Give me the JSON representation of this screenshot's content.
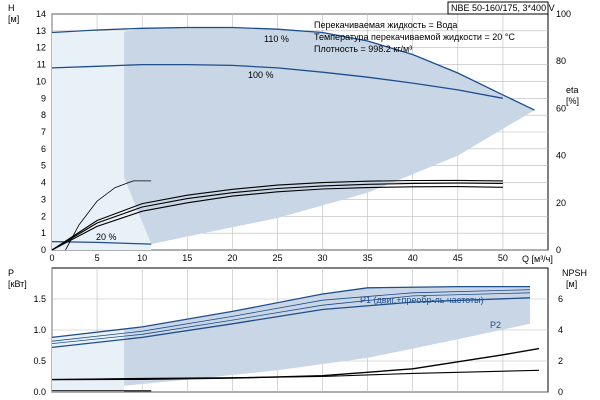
{
  "chart_data": {
    "type": "line",
    "colors": {
      "curve": "#1f4e8c",
      "region": "#c9d6e6",
      "region_light": "#e8f0f8",
      "grid": "#bbbbbb",
      "curve_black": "#000000"
    },
    "title_box": "NBE 50-160/175, 3*400 V",
    "info_lines": [
      "Перекачиваемая жидкость = Вода",
      "Температура перекачиваемой жидкости = 20 °C",
      "Плотность = 998.2 кг/м³"
    ],
    "x_axis": {
      "label": "Q [м³/ч]",
      "ticks": [
        0,
        5,
        10,
        15,
        20,
        25,
        30,
        35,
        40,
        45,
        50
      ],
      "range": [
        0,
        55
      ]
    },
    "top": {
      "y_left_label": [
        "H",
        "[м]"
      ],
      "y_left_range": [
        0,
        14
      ],
      "y_left_ticks": [
        0,
        1,
        2,
        3,
        4,
        5,
        6,
        7,
        8,
        9,
        10,
        11,
        12,
        13,
        14
      ],
      "y_right_label": [
        "eta",
        "[%]"
      ],
      "y_right_range": [
        0,
        100
      ],
      "y_right_ticks": [
        0,
        20,
        40,
        60,
        80,
        100
      ],
      "curve_labels": [
        "110 %",
        "100 %",
        "20 %"
      ],
      "series": [
        {
          "name": "110 %",
          "points": [
            [
              0,
              12.9
            ],
            [
              5,
              13.05
            ],
            [
              10,
              13.15
            ],
            [
              15,
              13.2
            ],
            [
              20,
              13.2
            ],
            [
              25,
              13.1
            ],
            [
              30,
              12.9
            ],
            [
              35,
              12.4
            ],
            [
              40,
              11.6
            ],
            [
              45,
              10.5
            ],
            [
              50,
              9.2
            ],
            [
              53.5,
              8.3
            ]
          ]
        },
        {
          "name": "100 %",
          "points": [
            [
              0,
              10.8
            ],
            [
              5,
              10.9
            ],
            [
              10,
              11.0
            ],
            [
              15,
              11.0
            ],
            [
              20,
              10.95
            ],
            [
              25,
              10.8
            ],
            [
              30,
              10.55
            ],
            [
              35,
              10.25
            ],
            [
              40,
              9.9
            ],
            [
              45,
              9.5
            ],
            [
              50,
              9.0
            ]
          ]
        },
        {
          "name": "20 %",
          "points": [
            [
              0,
              0.5
            ],
            [
              5,
              0.45
            ],
            [
              11,
              0.35
            ]
          ]
        }
      ],
      "eff_curves": [
        {
          "points": [
            [
              0,
              0.0
            ],
            [
              5,
              1.4
            ],
            [
              10,
              2.3
            ],
            [
              15,
              2.8
            ],
            [
              20,
              3.2
            ],
            [
              25,
              3.45
            ],
            [
              30,
              3.62
            ],
            [
              35,
              3.7
            ],
            [
              40,
              3.75
            ],
            [
              45,
              3.76
            ],
            [
              50,
              3.72
            ]
          ]
        },
        {
          "points": [
            [
              0,
              0.0
            ],
            [
              5,
              1.6
            ],
            [
              10,
              2.55
            ],
            [
              15,
              3.05
            ],
            [
              20,
              3.4
            ],
            [
              25,
              3.65
            ],
            [
              30,
              3.8
            ],
            [
              35,
              3.9
            ],
            [
              40,
              3.95
            ],
            [
              45,
              3.97
            ],
            [
              50,
              3.95
            ]
          ]
        },
        {
          "points": [
            [
              0,
              0.0
            ],
            [
              5,
              1.75
            ],
            [
              10,
              2.75
            ],
            [
              15,
              3.25
            ],
            [
              20,
              3.6
            ],
            [
              25,
              3.85
            ],
            [
              30,
              4.0
            ],
            [
              35,
              4.08
            ],
            [
              40,
              4.12
            ],
            [
              45,
              4.13
            ],
            [
              50,
              4.1
            ]
          ]
        }
      ],
      "eff_curve_small": {
        "points": [
          [
            1.5,
            0.0
          ],
          [
            3,
            1.5
          ],
          [
            5,
            2.9
          ],
          [
            7,
            3.7
          ],
          [
            9,
            4.1
          ],
          [
            11,
            4.1
          ]
        ]
      }
    },
    "bottom": {
      "y_left_label": [
        "P",
        "[кВт]"
      ],
      "y_left_range": [
        0,
        2.0
      ],
      "y_left_ticks": [
        0.0,
        0.5,
        1.0,
        1.5
      ],
      "y_right_label": [
        "NPSH",
        "[м]"
      ],
      "y_right_range": [
        0,
        8
      ],
      "y_right_ticks": [
        0,
        2,
        4,
        6
      ],
      "curve_labels": [
        "P1 (двиг.+преобр-ль частоты)",
        "P2"
      ],
      "series": [
        {
          "name": "P1 (двиг.+преобр-ль частоты)",
          "points": [
            [
              0,
              0.88
            ],
            [
              10,
              1.05
            ],
            [
              20,
              1.3
            ],
            [
              30,
              1.58
            ],
            [
              35,
              1.68
            ],
            [
              45,
              1.7
            ],
            [
              53,
              1.7
            ]
          ]
        },
        {
          "name": "P2",
          "points": [
            [
              0,
              0.72
            ],
            [
              10,
              0.88
            ],
            [
              20,
              1.1
            ],
            [
              30,
              1.33
            ],
            [
              40,
              1.45
            ],
            [
              53,
              1.52
            ]
          ]
        }
      ],
      "minor_curves": [
        {
          "points": [
            [
              0,
              0.82
            ],
            [
              10,
              0.98
            ],
            [
              20,
              1.22
            ],
            [
              30,
              1.48
            ],
            [
              40,
              1.6
            ],
            [
              53,
              1.65
            ]
          ]
        },
        {
          "points": [
            [
              0,
              0.78
            ],
            [
              10,
              0.93
            ],
            [
              20,
              1.16
            ],
            [
              30,
              1.4
            ],
            [
              40,
              1.55
            ],
            [
              53,
              1.6
            ]
          ]
        }
      ],
      "npsh_curve": {
        "points": [
          [
            0,
            0.8
          ],
          [
            10,
            0.82
          ],
          [
            20,
            0.9
          ],
          [
            30,
            1.05
          ],
          [
            40,
            1.5
          ],
          [
            50,
            2.4
          ],
          [
            54,
            2.8
          ]
        ]
      },
      "low_curves": [
        {
          "points": [
            [
              0,
              0.02
            ],
            [
              11,
              0.02
            ]
          ]
        },
        {
          "points": [
            [
              0,
              0.2
            ],
            [
              10,
              0.22
            ],
            [
              20,
              0.23
            ],
            [
              30,
              0.25
            ],
            [
              40,
              0.3
            ],
            [
              54,
              0.35
            ]
          ]
        }
      ]
    }
  }
}
